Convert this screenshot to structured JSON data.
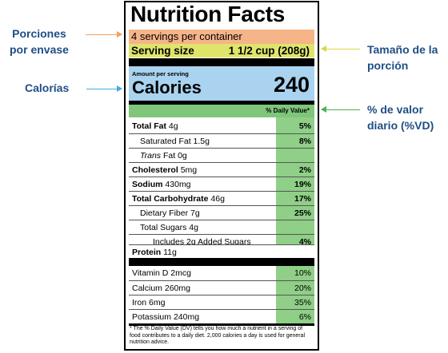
{
  "callouts": {
    "servings": [
      "Porciones",
      "por envase"
    ],
    "calories": "Calorías",
    "serving_size": [
      "Tamaño de la",
      "porción"
    ],
    "daily_value": [
      "% de valor",
      "diario (%VD)"
    ]
  },
  "colors": {
    "servings": "#f6b489",
    "serving_size": "#dfe56b",
    "calories": "#a9d3ef",
    "daily_value": "#8fcf87",
    "callout_text": "#1f4e86"
  },
  "label": {
    "title": "Nutrition Facts",
    "servings": "4 servings per container",
    "serving_size_label": "Serving size",
    "serving_size_value": "1 1/2 cup (208g)",
    "amount_per_serving": "Amount per serving",
    "calories_label": "Calories",
    "calories_value": "240",
    "dv_header": "% Daily Value*",
    "nutrients": [
      {
        "name": "Total Fat",
        "amount": "4g",
        "dv": "5%"
      },
      {
        "name": "Saturated Fat",
        "amount": "1.5g",
        "dv": "8%"
      },
      {
        "name": "Trans",
        "amount": "Fat 0g",
        "dv": ""
      },
      {
        "name": "Cholesterol",
        "amount": "5mg",
        "dv": "2%"
      },
      {
        "name": "Sodium",
        "amount": "430mg",
        "dv": "19%"
      },
      {
        "name": "Total Carbohydrate",
        "amount": "46g",
        "dv": "17%"
      },
      {
        "name": "Dietary Fiber",
        "amount": "7g",
        "dv": "25%"
      },
      {
        "name": "Total Sugars",
        "amount": "4g",
        "dv": ""
      },
      {
        "name": "Includes 2g Added Sugars",
        "amount": "",
        "dv": "4%"
      },
      {
        "name": "Protein",
        "amount": "11g",
        "dv": ""
      }
    ],
    "vitamins": [
      {
        "name": "Vitamin D",
        "amount": "2mcg",
        "dv": "10%"
      },
      {
        "name": "Calcium",
        "amount": "260mg",
        "dv": "20%"
      },
      {
        "name": "Iron",
        "amount": "6mg",
        "dv": "35%"
      },
      {
        "name": "Potassium",
        "amount": "240mg",
        "dv": "6%"
      }
    ],
    "footnote": "* The % Daily Value (DV) tells you how much a nutrient in a serving of food contributes to a daily diet. 2,000 calories a day is used for general nutrition advice."
  }
}
